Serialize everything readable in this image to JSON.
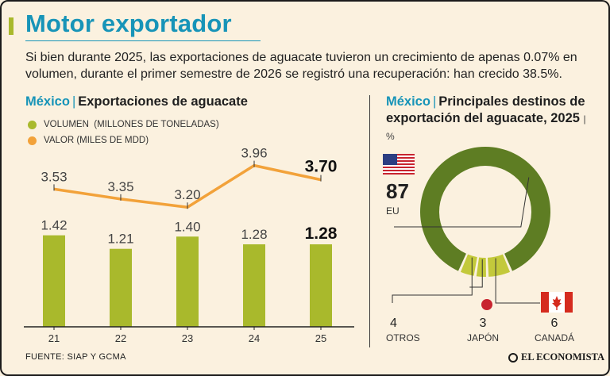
{
  "header": {
    "title": "Motor exportador",
    "subtitle": "Si bien durante 2025, las exportaciones de aguacate tuvieron un crecimiento de apenas 0.07% en volumen, durante el primer semestre de 2026 se registró una recuperación: han crecido 38.5%."
  },
  "left_section": {
    "country": "México",
    "separator": "|",
    "heading": "Exportaciones de aguacate"
  },
  "right_section": {
    "country": "México",
    "separator": "|",
    "heading": "Principales destinos de exportación del aguacate, 2025",
    "unit_separator": "|",
    "unit": "%"
  },
  "colors": {
    "volumen": "#a9b92c",
    "valor": "#f2a23a",
    "donut_main": "#5e7d23",
    "donut_small": "#c3c93b",
    "title": "#1794b8"
  },
  "chart_data": [
    {
      "type": "bar",
      "categories": [
        "21",
        "22",
        "23",
        "24",
        "25"
      ],
      "series": [
        {
          "name": "VOLUMEN  (MILLONES DE TONELADAS)",
          "values": [
            1.42,
            1.21,
            1.4,
            1.28,
            1.28
          ],
          "labels": [
            "1.42",
            "1.21",
            "1.40",
            "1.28",
            "1.28"
          ]
        }
      ],
      "ylim": [
        0,
        1.6
      ]
    },
    {
      "type": "line",
      "categories": [
        "21",
        "22",
        "23",
        "24",
        "25"
      ],
      "series": [
        {
          "name": "VALOR (MILES DE MDD)",
          "values": [
            3.53,
            3.35,
            3.2,
            3.96,
            3.7
          ],
          "labels": [
            "3.53",
            "3.35",
            "3.20",
            "3.96",
            "3.70"
          ]
        }
      ],
      "ylim": [
        2.9,
        4.2
      ]
    },
    {
      "type": "pie",
      "style": "donut",
      "slices": [
        {
          "label": "EU",
          "value": 87,
          "value_label": "87",
          "icon": "usa-flag-icon"
        },
        {
          "label": "CANADÁ",
          "value": 6,
          "value_label": "6",
          "icon": "canada-flag-icon"
        },
        {
          "label": "JAPÓN",
          "value": 3,
          "value_label": "3",
          "icon": "japan-flag-icon"
        },
        {
          "label": "OTROS",
          "value": 4,
          "value_label": "4"
        }
      ]
    }
  ],
  "footer": {
    "source": "FUENTE: SIAP Y GCMA",
    "brand": "EL ECONOMISTA",
    "brand_icon": "newspaper-logo-icon"
  }
}
